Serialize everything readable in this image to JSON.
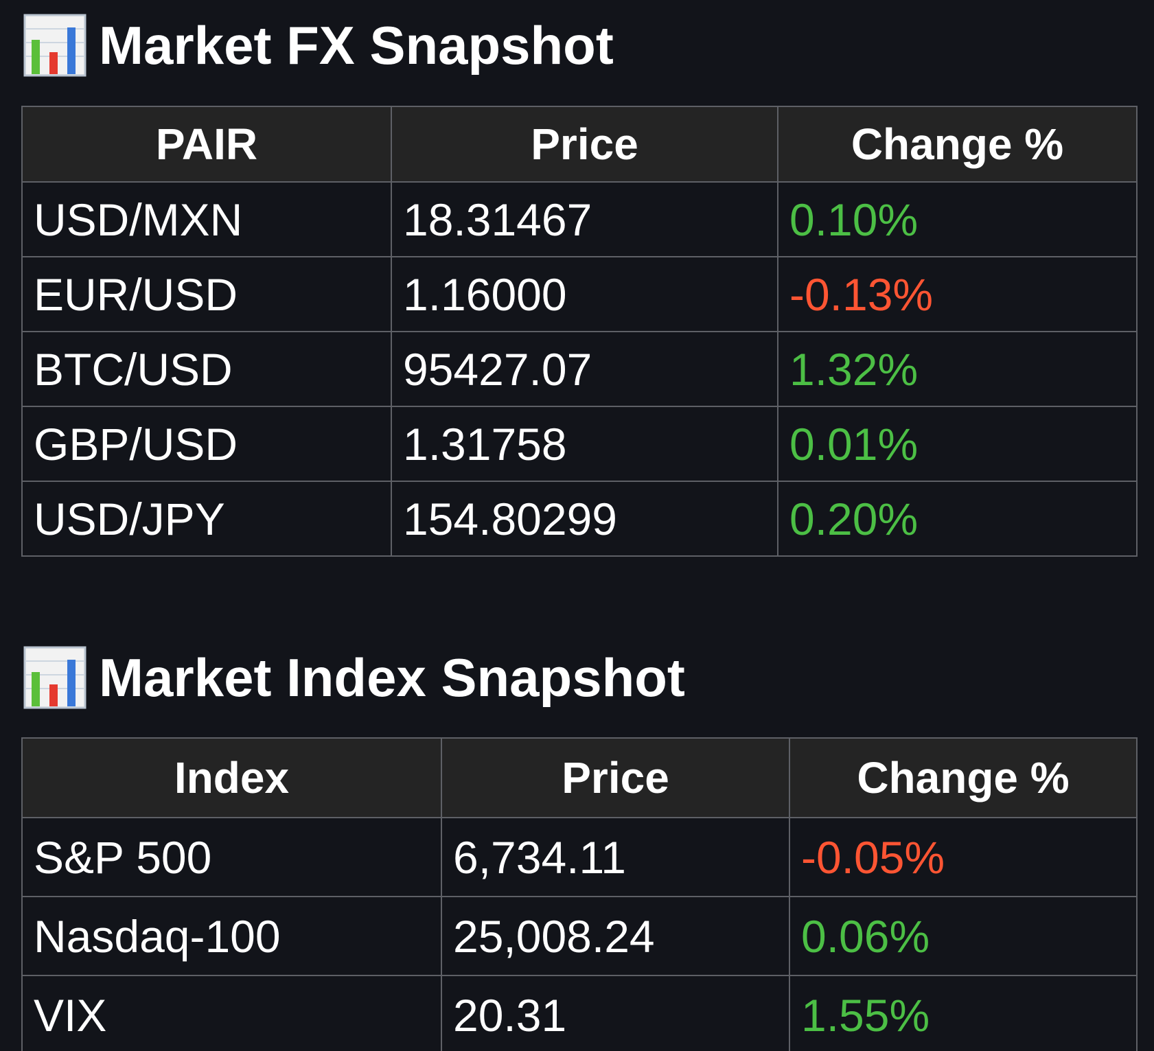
{
  "colors": {
    "background": "#12141a",
    "header_bg": "#242424",
    "border": "#5e6066",
    "positive": "#4cbf45",
    "negative": "#ff5533",
    "text": "#ffffff"
  },
  "fx": {
    "icon": "bar-chart-icon",
    "title": "Market FX Snapshot",
    "headers": [
      "PAIR",
      "Price",
      "Change %"
    ],
    "rows": [
      {
        "pair": "USD/MXN",
        "price": "18.31467",
        "change": "0.10%",
        "direction": "up"
      },
      {
        "pair": "EUR/USD",
        "price": "1.16000",
        "change": "-0.13%",
        "direction": "down"
      },
      {
        "pair": "BTC/USD",
        "price": "95427.07",
        "change": "1.32%",
        "direction": "up"
      },
      {
        "pair": "GBP/USD",
        "price": "1.31758",
        "change": "0.01%",
        "direction": "up"
      },
      {
        "pair": "USD/JPY",
        "price": "154.80299",
        "change": "0.20%",
        "direction": "up"
      }
    ]
  },
  "index": {
    "icon": "bar-chart-icon",
    "title": "Market Index Snapshot",
    "headers": [
      "Index",
      "Price",
      "Change %"
    ],
    "rows": [
      {
        "pair": "S&P 500",
        "price": "6,734.11",
        "change": "-0.05%",
        "direction": "down"
      },
      {
        "pair": "Nasdaq-100",
        "price": "25,008.24",
        "change": "0.06%",
        "direction": "up"
      },
      {
        "pair": "VIX",
        "price": "20.31",
        "change": "1.55%",
        "direction": "up"
      }
    ]
  }
}
